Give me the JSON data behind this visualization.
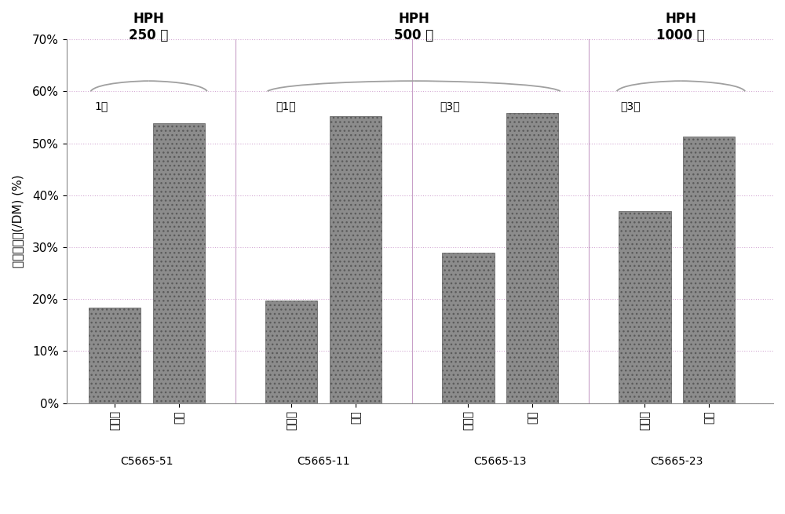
{
  "bar_values": [
    0.184,
    0.538,
    0.197,
    0.553,
    0.289,
    0.558,
    0.37,
    0.513
  ],
  "bar_labels": [
    "上清液",
    "沉淠",
    "上清液",
    "沉淠",
    "上清液",
    "沉淠",
    "上清液",
    "沉淠"
  ],
  "group_labels": [
    "C5665-51",
    "C5665-11",
    "C5665-13",
    "C5665-23"
  ],
  "ylim": [
    0,
    0.7
  ],
  "yticks": [
    0.0,
    0.1,
    0.2,
    0.3,
    0.4,
    0.5,
    0.6,
    0.7
  ],
  "ytick_labels": [
    "0%",
    "10%",
    "20%",
    "30%",
    "40%",
    "50%",
    "60%",
    "70%"
  ],
  "ylabel": "蛋白质含量(/DM) (%)",
  "bar_color": "#8c8c8c",
  "bar_edge_color": "#5a5a5a",
  "background_color": "#ffffff",
  "grid_color": "#d4aad4",
  "divider_color": "#c8a0c8",
  "bracket_color": "#a0a0a0",
  "hph_labels": [
    "HPH\n250 巴",
    "HPH\n500 巴",
    "HPH\n1000 巴"
  ],
  "pass_labels": [
    "1遍",
    "共1遍",
    "共3遍",
    "共3遍"
  ],
  "figsize": [
    10.0,
    6.55
  ]
}
